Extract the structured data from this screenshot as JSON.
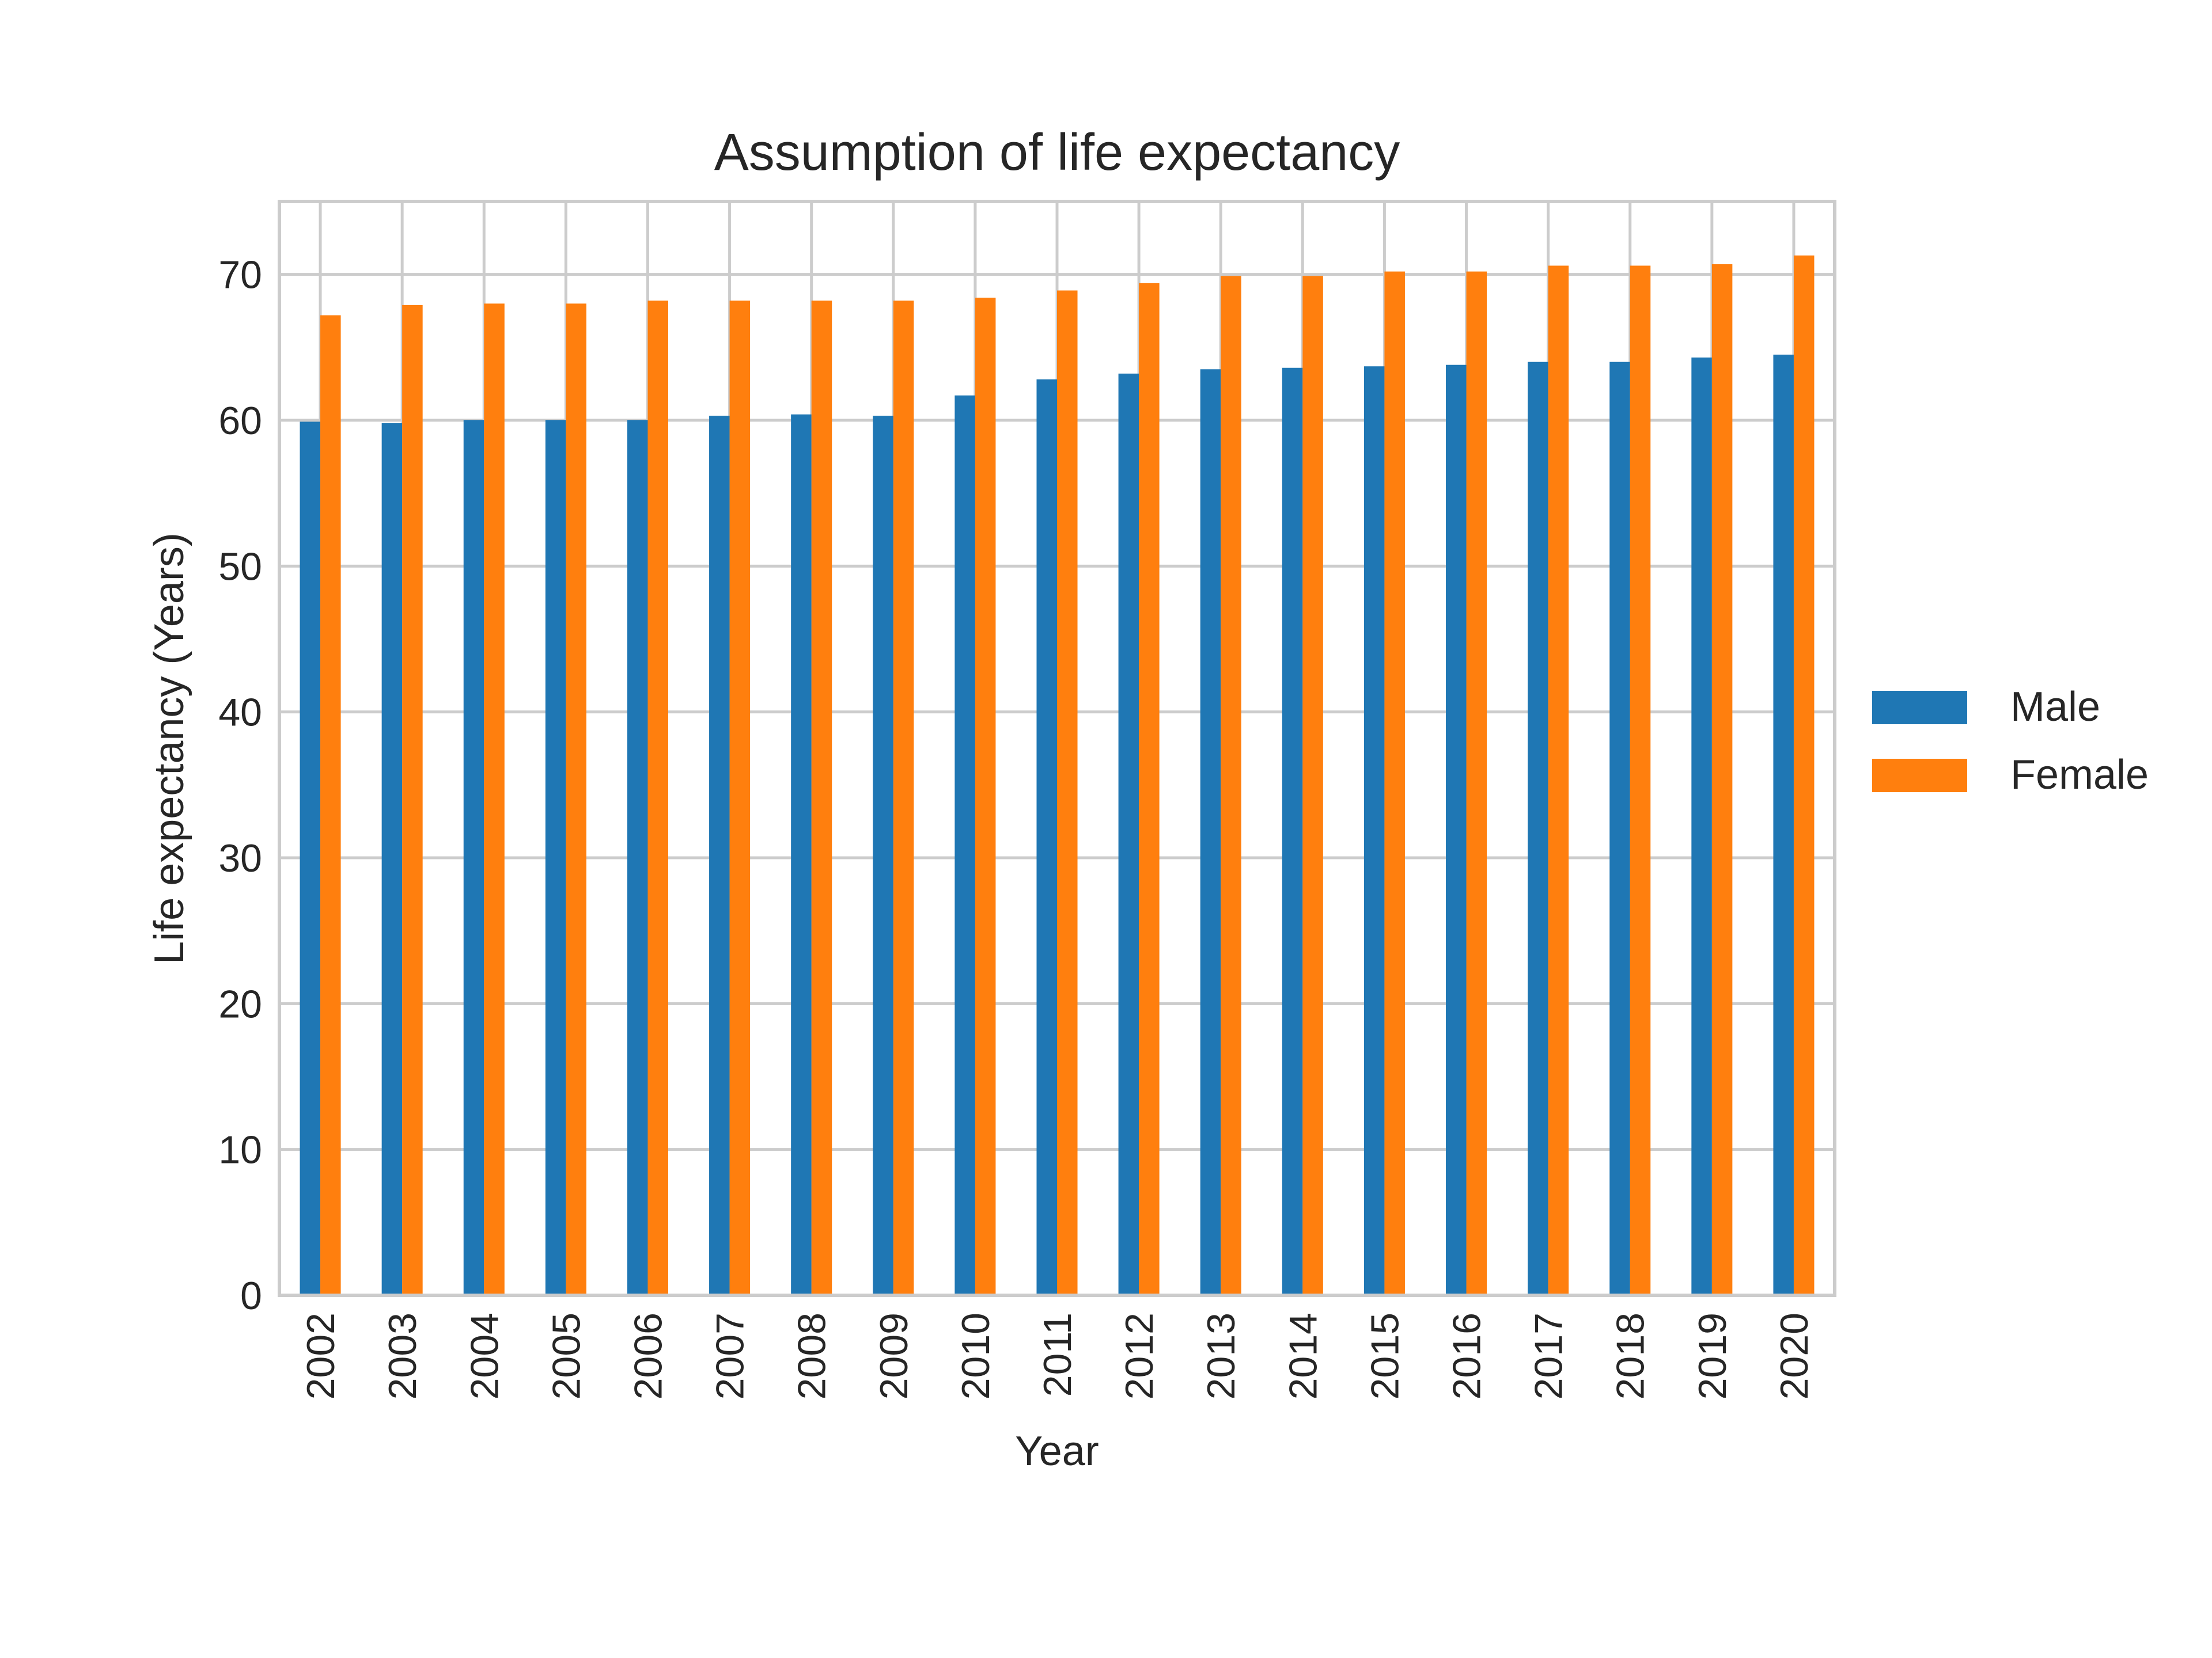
{
  "chart_data": {
    "type": "bar",
    "title": "Assumption of life expectancy",
    "xlabel": "Year",
    "ylabel": "Life expectancy (Years)",
    "ylim": [
      0,
      75
    ],
    "yticks": [
      0,
      10,
      20,
      30,
      40,
      50,
      60,
      70
    ],
    "grid": true,
    "legend_position": "center-right",
    "categories": [
      "2002",
      "2003",
      "2004",
      "2005",
      "2006",
      "2007",
      "2008",
      "2009",
      "2010",
      "2011",
      "2012",
      "2013",
      "2014",
      "2015",
      "2016",
      "2017",
      "2018",
      "2019",
      "2020"
    ],
    "series": [
      {
        "name": "Male",
        "color": "#1f77b4",
        "values": [
          59.9,
          59.8,
          60.0,
          60.0,
          60.0,
          60.3,
          60.4,
          60.3,
          61.7,
          62.8,
          63.2,
          63.5,
          63.6,
          63.7,
          63.8,
          64.0,
          64.0,
          64.3,
          64.5
        ]
      },
      {
        "name": "Female",
        "color": "#ff7f0e",
        "values": [
          67.2,
          67.9,
          68.0,
          68.0,
          68.2,
          68.2,
          68.2,
          68.2,
          68.4,
          68.9,
          69.4,
          69.9,
          69.9,
          70.2,
          70.2,
          70.6,
          70.6,
          70.7,
          71.3
        ]
      }
    ]
  }
}
